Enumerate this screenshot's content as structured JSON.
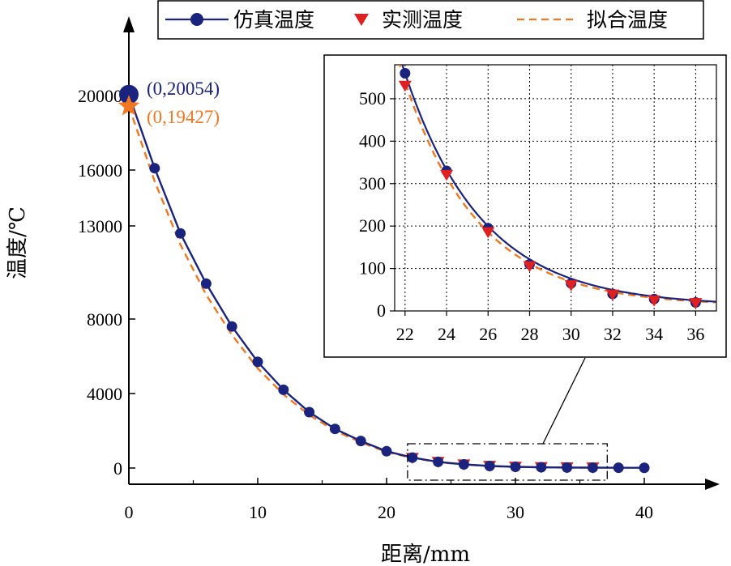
{
  "chart_data": {
    "type": "line",
    "xlabel": "距离/mm",
    "ylabel": "温度/℃",
    "xlim": [
      0,
      45
    ],
    "ylim": [
      0,
      20000
    ],
    "xticks": [
      0,
      10,
      20,
      30,
      40
    ],
    "yticks": [
      0,
      4000,
      8000,
      13000,
      16000,
      20000
    ],
    "legend_position": "top",
    "series": [
      {
        "name": "仿真温度",
        "kind": "line-with-markers",
        "color": "#1a237e",
        "x": [
          0,
          2,
          4,
          6,
          8,
          10,
          12,
          14,
          16,
          18,
          20,
          22,
          24,
          26,
          28,
          30,
          32,
          34,
          36,
          38,
          40
        ],
        "y": [
          20054,
          16100,
          12600,
          9900,
          7600,
          5700,
          4200,
          3000,
          2100,
          1450,
          900,
          560,
          330,
          195,
          110,
          65,
          40,
          28,
          20,
          15,
          12
        ]
      },
      {
        "name": "实测温度",
        "kind": "markers",
        "color": "#e02020",
        "x": [
          22,
          24,
          26,
          28,
          30,
          32,
          34,
          36
        ],
        "y": [
          530,
          320,
          185,
          105,
          60,
          38,
          24,
          18
        ]
      },
      {
        "name": "拟合温度",
        "kind": "dashed-line",
        "color": "#f07820",
        "x": [
          0,
          2,
          4,
          6,
          8,
          10,
          12,
          14,
          16,
          18,
          20,
          22,
          24,
          26,
          28,
          30,
          32,
          34,
          36
        ],
        "y": [
          19427,
          15400,
          12000,
          9300,
          7150,
          5350,
          3950,
          2850,
          2000,
          1380,
          860,
          540,
          318,
          185,
          104,
          60,
          38,
          25,
          18
        ]
      }
    ],
    "annotations": [
      {
        "text": "(0,20054)",
        "x": 0,
        "y": 20054,
        "color": "#1a237e"
      },
      {
        "text": "(0,19427)",
        "x": 0,
        "y": 19427,
        "color": "#f07820"
      }
    ],
    "inset": {
      "xlim": [
        21.5,
        37
      ],
      "ylim": [
        0,
        580
      ],
      "xticks": [
        22,
        24,
        26,
        28,
        30,
        32,
        34,
        36
      ],
      "yticks": [
        0,
        100,
        200,
        300,
        400,
        500
      ],
      "grid": true,
      "zoom_region": {
        "x": [
          21,
          37
        ],
        "y": [
          0,
          600
        ]
      }
    }
  }
}
